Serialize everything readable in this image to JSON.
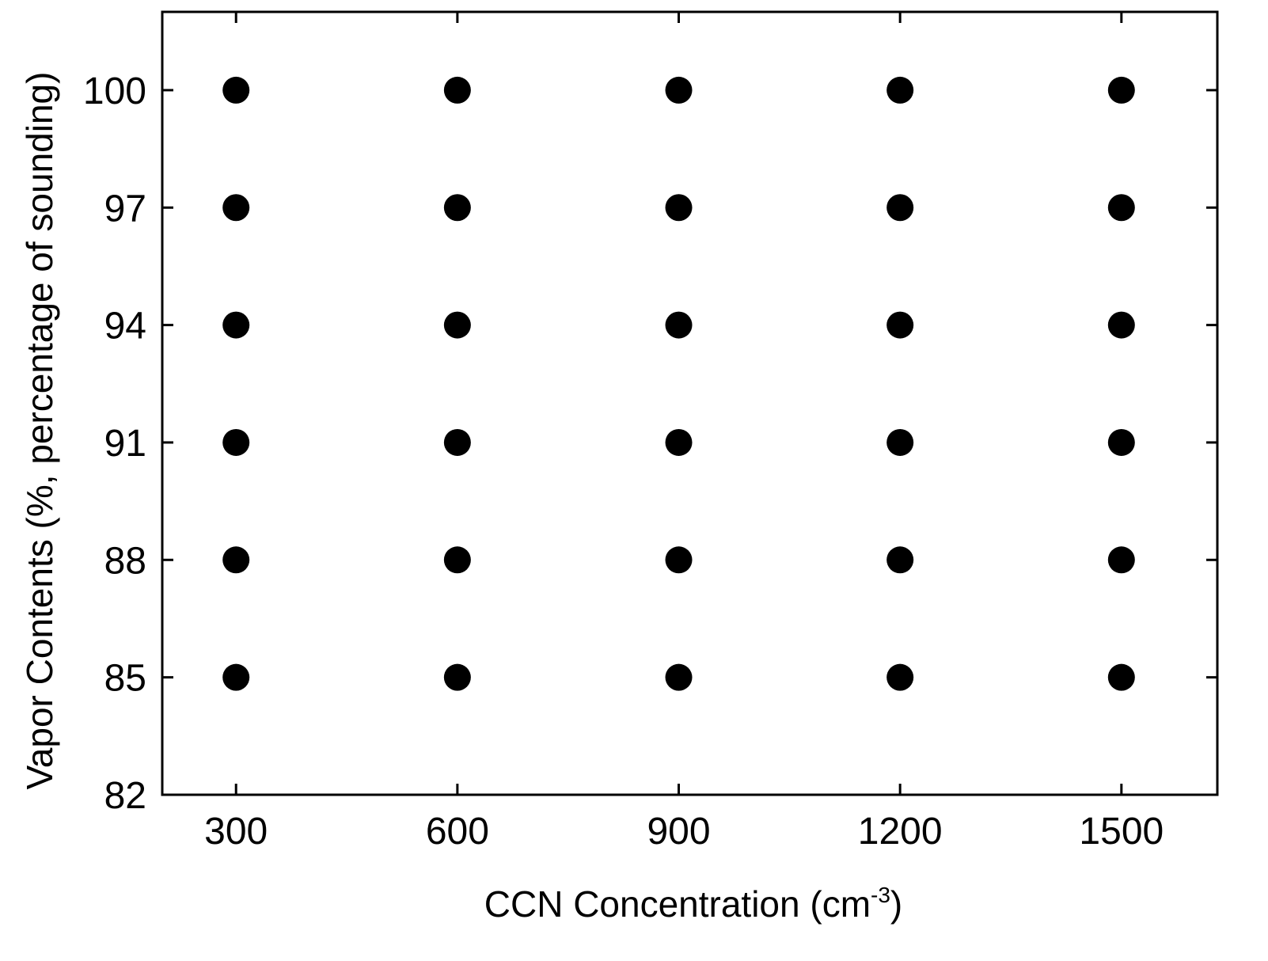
{
  "chart_data": {
    "type": "scatter",
    "title": "",
    "xlabel": {
      "text": "CCN Concentration (cm",
      "superscript": "-3",
      "suffix": ")"
    },
    "ylabel": "Vapor Contents (%, percentage of sounding)",
    "xlim": [
      200,
      1630
    ],
    "ylim": [
      82,
      102
    ],
    "xticks": [
      300,
      600,
      900,
      1200,
      1500
    ],
    "xtick_labels": [
      "300",
      "600",
      "900",
      "1200",
      "1500"
    ],
    "yticks": [
      82,
      85,
      88,
      91,
      94,
      97,
      100
    ],
    "ytick_labels": [
      "82",
      "85",
      "88",
      "91",
      "94",
      "97",
      "100"
    ],
    "grid": false,
    "legend": "none",
    "marker_color": "#000000",
    "series": [
      {
        "points": [
          {
            "x": 300,
            "y": 85
          },
          {
            "x": 300,
            "y": 88
          },
          {
            "x": 300,
            "y": 91
          },
          {
            "x": 300,
            "y": 94
          },
          {
            "x": 300,
            "y": 97
          },
          {
            "x": 300,
            "y": 100
          },
          {
            "x": 600,
            "y": 85
          },
          {
            "x": 600,
            "y": 88
          },
          {
            "x": 600,
            "y": 91
          },
          {
            "x": 600,
            "y": 94
          },
          {
            "x": 600,
            "y": 97
          },
          {
            "x": 600,
            "y": 100
          },
          {
            "x": 900,
            "y": 85
          },
          {
            "x": 900,
            "y": 88
          },
          {
            "x": 900,
            "y": 91
          },
          {
            "x": 900,
            "y": 94
          },
          {
            "x": 900,
            "y": 97
          },
          {
            "x": 900,
            "y": 100
          },
          {
            "x": 1200,
            "y": 85
          },
          {
            "x": 1200,
            "y": 88
          },
          {
            "x": 1200,
            "y": 91
          },
          {
            "x": 1200,
            "y": 94
          },
          {
            "x": 1200,
            "y": 97
          },
          {
            "x": 1200,
            "y": 100
          },
          {
            "x": 1500,
            "y": 85
          },
          {
            "x": 1500,
            "y": 88
          },
          {
            "x": 1500,
            "y": 91
          },
          {
            "x": 1500,
            "y": 94
          },
          {
            "x": 1500,
            "y": 97
          },
          {
            "x": 1500,
            "y": 100
          }
        ]
      }
    ]
  }
}
